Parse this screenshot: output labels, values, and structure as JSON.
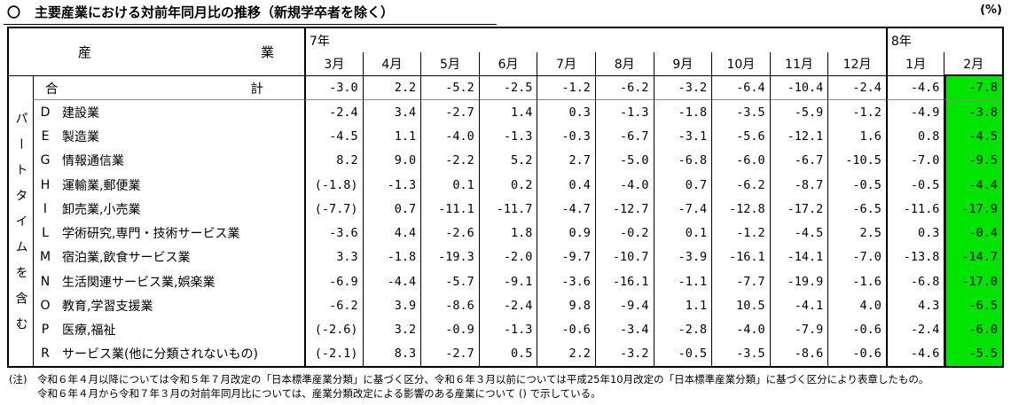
{
  "title": {
    "bullet": "〇",
    "text": "主要産業における対前年同月比の推移（新規学卒者を除く）",
    "unit_label": "(%)"
  },
  "table": {
    "industry_header_left": "産",
    "industry_header_right": "業",
    "side_label": "パートタイムを含む",
    "year_groups": [
      {
        "label": "7年",
        "months": [
          "3月",
          "4月",
          "5月",
          "6月",
          "7月",
          "8月",
          "9月",
          "10月",
          "11月",
          "12月"
        ]
      },
      {
        "label": "8年",
        "months": [
          "1月",
          "2月"
        ]
      }
    ],
    "highlight_column": "2月",
    "highlight_color": "#00e400",
    "total_row": {
      "label_left": "合",
      "label_right": "計",
      "values": [
        "-3.0",
        "2.2",
        "-5.2",
        "-2.5",
        "-1.2",
        "-6.2",
        "-3.2",
        "-6.4",
        "-10.4",
        "-2.4",
        "-4.6",
        "-7.8"
      ]
    },
    "industry_rows": [
      {
        "code": "D",
        "name": "建設業",
        "values": [
          "-2.4",
          "3.4",
          "-2.7",
          "1.4",
          "0.3",
          "-1.3",
          "-1.8",
          "-3.5",
          "-5.9",
          "-1.2",
          "-4.9",
          "-3.8"
        ]
      },
      {
        "code": "E",
        "name": "製造業",
        "values": [
          "-4.5",
          "1.1",
          "-4.0",
          "-1.3",
          "-0.3",
          "-6.7",
          "-3.1",
          "-5.6",
          "-12.1",
          "1.6",
          "0.8",
          "-4.5"
        ]
      },
      {
        "code": "G",
        "name": "情報通信業",
        "values": [
          "8.2",
          "9.0",
          "-2.2",
          "5.2",
          "2.7",
          "-5.0",
          "-6.8",
          "-6.0",
          "-6.7",
          "-10.5",
          "-7.0",
          "-9.5"
        ]
      },
      {
        "code": "H",
        "name": "運輸業,郵便業",
        "values": [
          "(-1.8)",
          "-1.3",
          "0.1",
          "0.2",
          "0.4",
          "-4.0",
          "0.7",
          "-6.2",
          "-8.7",
          "-0.5",
          "-0.5",
          "-4.4"
        ]
      },
      {
        "code": "I",
        "name": "卸売業,小売業",
        "values": [
          "(-7.7)",
          "0.7",
          "-11.1",
          "-11.7",
          "-4.7",
          "-12.7",
          "-7.4",
          "-12.8",
          "-17.2",
          "-6.5",
          "-11.6",
          "-17.9"
        ]
      },
      {
        "code": "L",
        "name": "学術研究,専門・技術サービス業",
        "values": [
          "-3.6",
          "4.4",
          "-2.6",
          "1.8",
          "0.9",
          "-0.2",
          "0.1",
          "-1.2",
          "-4.5",
          "2.5",
          "0.3",
          "-0.4"
        ]
      },
      {
        "code": "M",
        "name": "宿泊業,飲食サービス業",
        "values": [
          "3.3",
          "-1.8",
          "-19.3",
          "-2.0",
          "-9.7",
          "-10.7",
          "-3.9",
          "-16.1",
          "-14.1",
          "-7.0",
          "-13.8",
          "-14.7"
        ]
      },
      {
        "code": "N",
        "name": "生活関連サービス業,娯楽業",
        "values": [
          "-6.9",
          "-4.4",
          "-5.7",
          "-9.1",
          "-3.6",
          "-16.1",
          "-1.1",
          "-7.7",
          "-19.9",
          "-1.6",
          "-6.8",
          "-17.0"
        ]
      },
      {
        "code": "O",
        "name": "教育,学習支援業",
        "values": [
          "-6.2",
          "3.9",
          "-8.6",
          "-2.4",
          "9.8",
          "-9.4",
          "1.1",
          "10.5",
          "-4.1",
          "4.0",
          "4.3",
          "-6.5"
        ]
      },
      {
        "code": "P",
        "name": "医療,福祉",
        "values": [
          "(-2.6)",
          "3.2",
          "-0.9",
          "-1.3",
          "-0.6",
          "-3.4",
          "-2.8",
          "-4.0",
          "-7.9",
          "-0.6",
          "-2.4",
          "-6.0"
        ]
      },
      {
        "code": "R",
        "name": "サービス業(他に分類されないもの)",
        "values": [
          "(-2.1)",
          "8.3",
          "-2.7",
          "0.5",
          "2.2",
          "-3.2",
          "-0.5",
          "-3.5",
          "-8.6",
          "-0.6",
          "-4.6",
          "-5.5"
        ]
      }
    ]
  },
  "notes": {
    "prefix": "(注)",
    "line1": "令和６年４月以降については令和５年７月改定の「日本標準産業分類」に基づく区分、令和６年３月以前については平成25年10月改定の「日本標準産業分類」に基づく区分により表章したもの。",
    "line2": "令和６年４月から令和７年３月の対前年同月比については、産業分類改定による影響のある産業について () で示している。"
  }
}
